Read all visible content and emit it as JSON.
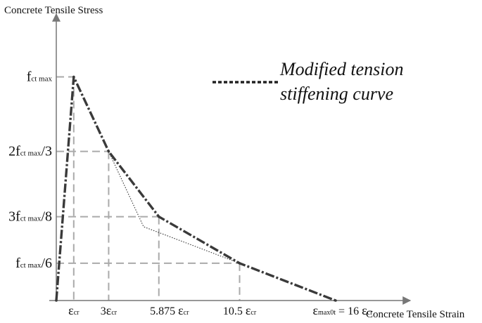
{
  "chart_data": {
    "type": "line",
    "ylabel": "Concrete Tensile Stress",
    "xlabel": "Concrete Tensile Strain",
    "legend": {
      "label_line1": "Modified tension",
      "label_line2": "stiffening curve",
      "placement": "top-right"
    },
    "x_ticks": [
      {
        "value": 1,
        "pre": "",
        "sym": "ε",
        "sub": "cr",
        "post": ""
      },
      {
        "value": 3,
        "pre": "3",
        "sym": "ε",
        "sub": "cr",
        "post": ""
      },
      {
        "value": 5.875,
        "pre": "5.875 ",
        "sym": "ε",
        "sub": "cr",
        "post": ""
      },
      {
        "value": 10.5,
        "pre": "10.5 ",
        "sym": "ε",
        "sub": "cr",
        "post": ""
      },
      {
        "value": 16,
        "pre": "",
        "sym": "ε",
        "sub": "max0t",
        "post": " = 16 ",
        "sym2": "ε",
        "sub2": "cr"
      }
    ],
    "y_ticks": [
      {
        "value": 1,
        "pre": "f",
        "sub": "ct max",
        "post": ""
      },
      {
        "value": 0.6667,
        "pre": "2f",
        "sub": "ct max",
        "post": "/3"
      },
      {
        "value": 0.375,
        "pre": "3f",
        "sub": "ct max",
        "post": "/8"
      },
      {
        "value": 0.1667,
        "pre": "f",
        "sub": "ct max",
        "post": "/6"
      }
    ],
    "series": [
      {
        "name": "Modified tension stiffening curve",
        "style": "dash-dot",
        "x": [
          0,
          1,
          3,
          5.875,
          10.5,
          16
        ],
        "y": [
          0,
          1,
          0.6667,
          0.375,
          0.1667,
          0
        ]
      },
      {
        "style": "dotted",
        "x": [
          3,
          5,
          10.5
        ],
        "y": [
          0.6667,
          0.33,
          0.1667
        ]
      }
    ]
  }
}
